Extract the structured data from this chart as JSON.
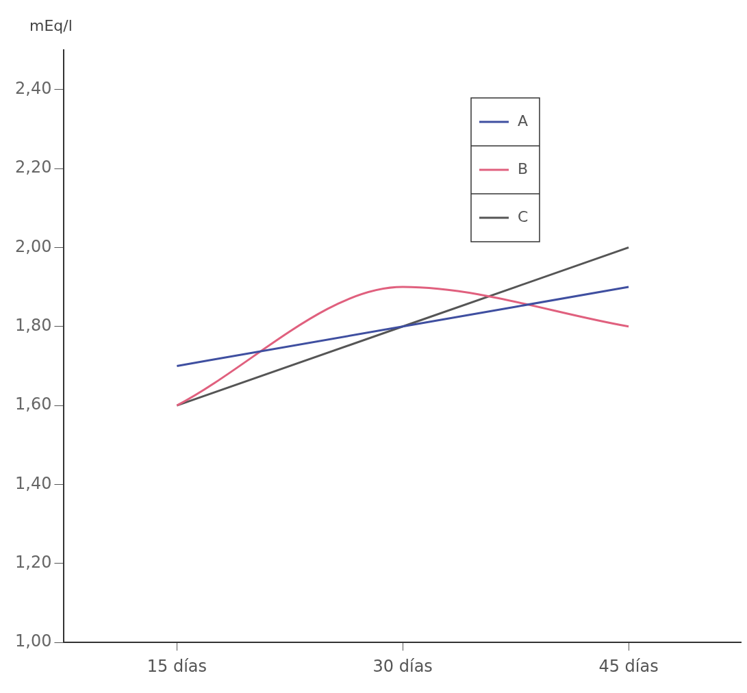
{
  "chart_data": {
    "type": "line",
    "ylabel": "mEq/l",
    "categories": [
      "15 días",
      "30 días",
      "45 días"
    ],
    "series": [
      {
        "name": "A",
        "color": "#3f4fa0",
        "values": [
          1.7,
          1.8,
          1.9
        ]
      },
      {
        "name": "B",
        "color": "#e0607e",
        "values": [
          1.6,
          1.9,
          1.8
        ]
      },
      {
        "name": "C",
        "color": "#555555",
        "values": [
          1.6,
          1.8,
          2.0
        ]
      }
    ],
    "ylim": [
      1.0,
      2.5
    ],
    "yticks": [
      {
        "value": 1.0,
        "label": "1,00"
      },
      {
        "value": 1.2,
        "label": "1,20"
      },
      {
        "value": 1.4,
        "label": "1,40"
      },
      {
        "value": 1.6,
        "label": "1,60"
      },
      {
        "value": 1.8,
        "label": "1,80"
      },
      {
        "value": 2.0,
        "label": "2,00"
      },
      {
        "value": 2.2,
        "label": "2,20"
      },
      {
        "value": 2.4,
        "label": "2,40"
      }
    ],
    "grid": false,
    "legend": "top right",
    "marker": "none",
    "line_style": "solid"
  }
}
